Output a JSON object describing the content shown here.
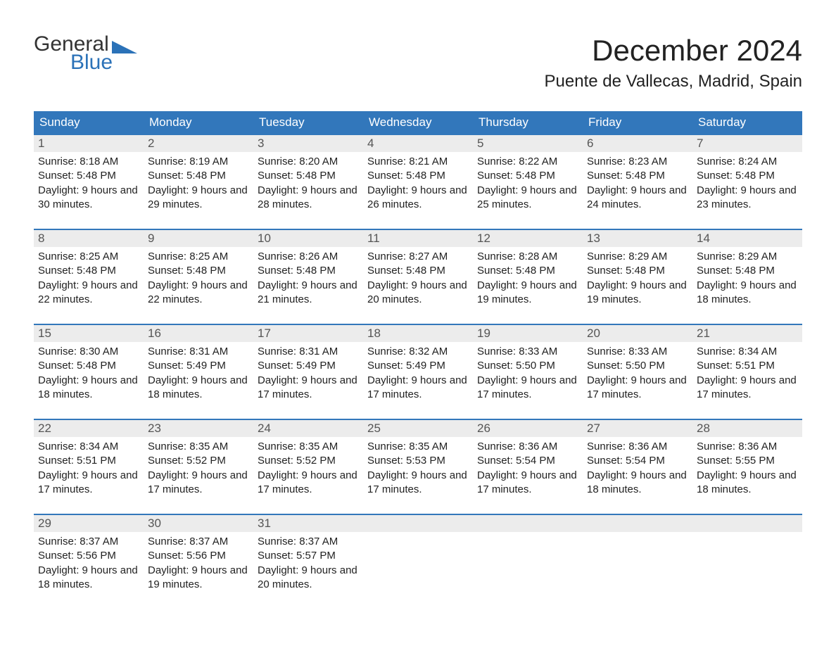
{
  "logo": {
    "word1": "General",
    "word2": "Blue"
  },
  "title": "December 2024",
  "location": "Puente de Vallecas, Madrid, Spain",
  "colors": {
    "header_bg": "#3277bb",
    "header_text": "#ffffff",
    "daynum_bg": "#ececec",
    "daynum_text": "#555555",
    "border": "#3277bb",
    "body_text": "#222222",
    "logo_blue": "#2b72b8"
  },
  "days_of_week": [
    "Sunday",
    "Monday",
    "Tuesday",
    "Wednesday",
    "Thursday",
    "Friday",
    "Saturday"
  ],
  "weeks": [
    [
      {
        "n": "1",
        "sunrise": "8:18 AM",
        "sunset": "5:48 PM",
        "daylight": "9 hours and 30 minutes."
      },
      {
        "n": "2",
        "sunrise": "8:19 AM",
        "sunset": "5:48 PM",
        "daylight": "9 hours and 29 minutes."
      },
      {
        "n": "3",
        "sunrise": "8:20 AM",
        "sunset": "5:48 PM",
        "daylight": "9 hours and 28 minutes."
      },
      {
        "n": "4",
        "sunrise": "8:21 AM",
        "sunset": "5:48 PM",
        "daylight": "9 hours and 26 minutes."
      },
      {
        "n": "5",
        "sunrise": "8:22 AM",
        "sunset": "5:48 PM",
        "daylight": "9 hours and 25 minutes."
      },
      {
        "n": "6",
        "sunrise": "8:23 AM",
        "sunset": "5:48 PM",
        "daylight": "9 hours and 24 minutes."
      },
      {
        "n": "7",
        "sunrise": "8:24 AM",
        "sunset": "5:48 PM",
        "daylight": "9 hours and 23 minutes."
      }
    ],
    [
      {
        "n": "8",
        "sunrise": "8:25 AM",
        "sunset": "5:48 PM",
        "daylight": "9 hours and 22 minutes."
      },
      {
        "n": "9",
        "sunrise": "8:25 AM",
        "sunset": "5:48 PM",
        "daylight": "9 hours and 22 minutes."
      },
      {
        "n": "10",
        "sunrise": "8:26 AM",
        "sunset": "5:48 PM",
        "daylight": "9 hours and 21 minutes."
      },
      {
        "n": "11",
        "sunrise": "8:27 AM",
        "sunset": "5:48 PM",
        "daylight": "9 hours and 20 minutes."
      },
      {
        "n": "12",
        "sunrise": "8:28 AM",
        "sunset": "5:48 PM",
        "daylight": "9 hours and 19 minutes."
      },
      {
        "n": "13",
        "sunrise": "8:29 AM",
        "sunset": "5:48 PM",
        "daylight": "9 hours and 19 minutes."
      },
      {
        "n": "14",
        "sunrise": "8:29 AM",
        "sunset": "5:48 PM",
        "daylight": "9 hours and 18 minutes."
      }
    ],
    [
      {
        "n": "15",
        "sunrise": "8:30 AM",
        "sunset": "5:48 PM",
        "daylight": "9 hours and 18 minutes."
      },
      {
        "n": "16",
        "sunrise": "8:31 AM",
        "sunset": "5:49 PM",
        "daylight": "9 hours and 18 minutes."
      },
      {
        "n": "17",
        "sunrise": "8:31 AM",
        "sunset": "5:49 PM",
        "daylight": "9 hours and 17 minutes."
      },
      {
        "n": "18",
        "sunrise": "8:32 AM",
        "sunset": "5:49 PM",
        "daylight": "9 hours and 17 minutes."
      },
      {
        "n": "19",
        "sunrise": "8:33 AM",
        "sunset": "5:50 PM",
        "daylight": "9 hours and 17 minutes."
      },
      {
        "n": "20",
        "sunrise": "8:33 AM",
        "sunset": "5:50 PM",
        "daylight": "9 hours and 17 minutes."
      },
      {
        "n": "21",
        "sunrise": "8:34 AM",
        "sunset": "5:51 PM",
        "daylight": "9 hours and 17 minutes."
      }
    ],
    [
      {
        "n": "22",
        "sunrise": "8:34 AM",
        "sunset": "5:51 PM",
        "daylight": "9 hours and 17 minutes."
      },
      {
        "n": "23",
        "sunrise": "8:35 AM",
        "sunset": "5:52 PM",
        "daylight": "9 hours and 17 minutes."
      },
      {
        "n": "24",
        "sunrise": "8:35 AM",
        "sunset": "5:52 PM",
        "daylight": "9 hours and 17 minutes."
      },
      {
        "n": "25",
        "sunrise": "8:35 AM",
        "sunset": "5:53 PM",
        "daylight": "9 hours and 17 minutes."
      },
      {
        "n": "26",
        "sunrise": "8:36 AM",
        "sunset": "5:54 PM",
        "daylight": "9 hours and 17 minutes."
      },
      {
        "n": "27",
        "sunrise": "8:36 AM",
        "sunset": "5:54 PM",
        "daylight": "9 hours and 18 minutes."
      },
      {
        "n": "28",
        "sunrise": "8:36 AM",
        "sunset": "5:55 PM",
        "daylight": "9 hours and 18 minutes."
      }
    ],
    [
      {
        "n": "29",
        "sunrise": "8:37 AM",
        "sunset": "5:56 PM",
        "daylight": "9 hours and 18 minutes."
      },
      {
        "n": "30",
        "sunrise": "8:37 AM",
        "sunset": "5:56 PM",
        "daylight": "9 hours and 19 minutes."
      },
      {
        "n": "31",
        "sunrise": "8:37 AM",
        "sunset": "5:57 PM",
        "daylight": "9 hours and 20 minutes."
      },
      null,
      null,
      null,
      null
    ]
  ],
  "labels": {
    "sunrise": "Sunrise:",
    "sunset": "Sunset:",
    "daylight": "Daylight:"
  }
}
